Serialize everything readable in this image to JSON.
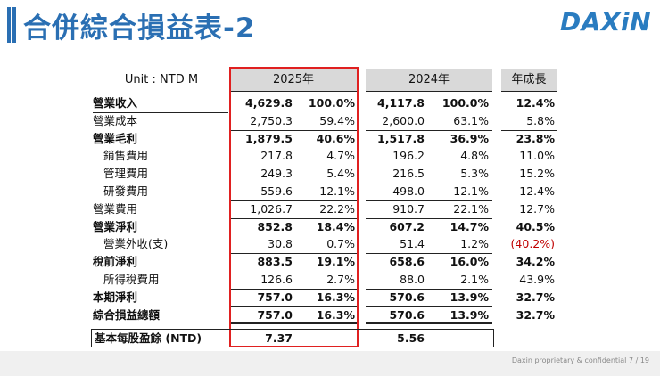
{
  "title": "合併綜合損益表-2",
  "logo": "DAXiN",
  "table": {
    "unit_label": "Unit : NTD M",
    "headers": [
      "2025年",
      "2024年",
      "年成長"
    ],
    "rows": [
      {
        "label": "營業收入",
        "v2025": "4,629.8",
        "p2025": "100.0%",
        "v2024": "4,117.8",
        "p2024": "100.0%",
        "growth": "12.4%"
      },
      {
        "label": "營業成本",
        "v2025": "2,750.3",
        "p2025": "59.4%",
        "v2024": "2,600.0",
        "p2024": "63.1%",
        "growth": "5.8%"
      },
      {
        "label": "營業毛利",
        "v2025": "1,879.5",
        "p2025": "40.6%",
        "v2024": "1,517.8",
        "p2024": "36.9%",
        "growth": "23.8%"
      },
      {
        "label": "銷售費用",
        "v2025": "217.8",
        "p2025": "4.7%",
        "v2024": "196.2",
        "p2024": "4.8%",
        "growth": "11.0%"
      },
      {
        "label": "管理費用",
        "v2025": "249.3",
        "p2025": "5.4%",
        "v2024": "216.5",
        "p2024": "5.3%",
        "growth": "15.2%"
      },
      {
        "label": "研發費用",
        "v2025": "559.6",
        "p2025": "12.1%",
        "v2024": "498.0",
        "p2024": "12.1%",
        "growth": "12.4%"
      },
      {
        "label": "營業費用",
        "v2025": "1,026.7",
        "p2025": "22.2%",
        "v2024": "910.7",
        "p2024": "22.1%",
        "growth": "12.7%"
      },
      {
        "label": "營業淨利",
        "v2025": "852.8",
        "p2025": "18.4%",
        "v2024": "607.2",
        "p2024": "14.7%",
        "growth": "40.5%"
      },
      {
        "label": "營業外收(支)",
        "v2025": "30.8",
        "p2025": "0.7%",
        "v2024": "51.4",
        "p2024": "1.2%",
        "growth": "(40.2%)"
      },
      {
        "label": "稅前淨利",
        "v2025": "883.5",
        "p2025": "19.1%",
        "v2024": "658.6",
        "p2024": "16.0%",
        "growth": "34.2%"
      },
      {
        "label": "所得稅費用",
        "v2025": "126.6",
        "p2025": "2.7%",
        "v2024": "88.0",
        "p2024": "2.1%",
        "growth": "43.9%"
      },
      {
        "label": "本期淨利",
        "v2025": "757.0",
        "p2025": "16.3%",
        "v2024": "570.6",
        "p2024": "13.9%",
        "growth": "32.7%"
      },
      {
        "label": "綜合損益總額",
        "v2025": "757.0",
        "p2025": "16.3%",
        "v2024": "570.6",
        "p2024": "13.9%",
        "growth": "32.7%"
      }
    ],
    "eps": {
      "label": "基本每股盈餘 (NTD)",
      "v2025": "7.37",
      "v2024": "5.56"
    }
  },
  "footer": "Daxin proprietary & confidential   7 / 19",
  "colors": {
    "title": "#2a6fb3",
    "highlight_box": "#e02020",
    "negative": "#c00000",
    "header_bg": "#d9d9d9"
  }
}
